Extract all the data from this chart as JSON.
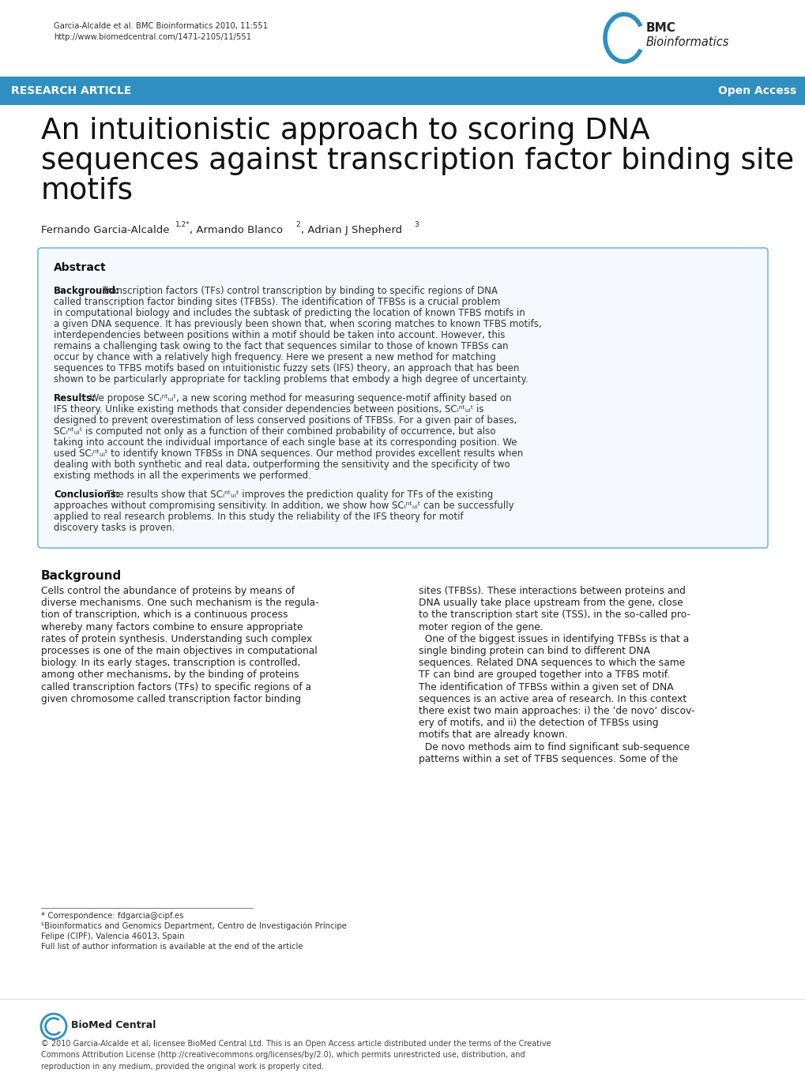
{
  "bg_color": "#ffffff",
  "header_citation": "Garcia-Alcalde et al. BMC Bioinformatics 2010, 11:551",
  "header_url": "http://www.biomedcentral.com/1471-2105/11/551",
  "banner_color": "#2e8fc0",
  "banner_text_left": "RESEARCH ARTICLE",
  "banner_text_right": "Open Access",
  "title_line1": "An intuitionistic approach to scoring DNA",
  "title_line2": "sequences against transcription factor binding site",
  "title_line3": "motifs",
  "abstract_border_color": "#5aade0",
  "abstract_bg": "#f5f9fd",
  "abstract_title": "Abstract",
  "bmc_logo_color": "#2e8fc0",
  "text_color": "#222222",
  "body_text_color": "#333333"
}
